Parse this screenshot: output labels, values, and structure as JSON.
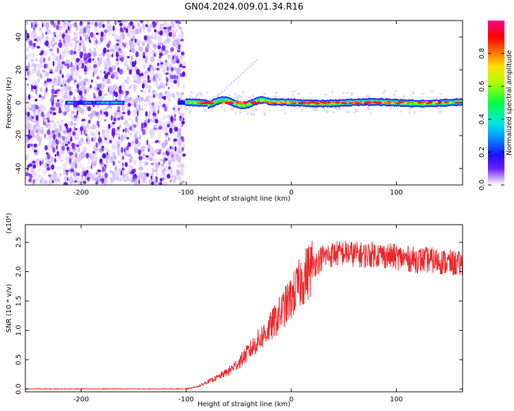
{
  "title": "GN04.2024.009.01.34.R16",
  "chart_data": [
    {
      "type": "heatmap",
      "title": "",
      "xlabel": "Height of straight line (km)",
      "ylabel": "Frequency (Hz)",
      "xlim": [
        -253,
        163
      ],
      "ylim": [
        -50,
        50
      ],
      "xticks": [
        -200,
        -100,
        0,
        100
      ],
      "yticks": [
        -40,
        -20,
        0,
        20,
        40
      ],
      "grid": false,
      "colorbar": {
        "label": "Normalized spectral amplitude",
        "range": [
          0,
          1
        ],
        "ticks": [
          "0.0",
          "0.2",
          "0.4",
          "0.6",
          "0.8"
        ],
        "colormap": "rainbow (purple-blue-cyan-green-yellow-red-magenta)"
      },
      "regions": [
        {
          "x_from": -253,
          "x_to": -102,
          "description": "broadband noise speckle",
          "amplitude": 0.1
        },
        {
          "x_from": -102,
          "x_to": 163,
          "description": "narrow signal band near 0 Hz",
          "center_hz": 0,
          "amplitude_range": [
            0.2,
            0.9
          ]
        }
      ]
    },
    {
      "type": "line",
      "title": "",
      "xlabel": "Height of straight line (km)",
      "ylabel": "SNR (10 * v/v)",
      "multiplier_label": "(x10⁴)",
      "xlim": [
        -253,
        163
      ],
      "ylim": [
        0,
        2.8
      ],
      "xticks": [
        -200,
        -100,
        0,
        100
      ],
      "yticks": [
        "0.0",
        "0.5",
        "1.0",
        "1.5",
        "2.0",
        "2.5"
      ],
      "grid": false,
      "series": [
        {
          "color": "#e8282b",
          "x": [
            -253,
            -200,
            -150,
            -100,
            -88,
            -80,
            -70,
            -60,
            -50,
            -40,
            -30,
            -20,
            -10,
            0,
            10,
            20,
            30,
            40,
            50,
            60,
            70,
            80,
            90,
            100,
            110,
            120,
            130,
            140,
            150,
            163
          ],
          "y": [
            0.0,
            0.0,
            0.0,
            0.0,
            0.05,
            0.12,
            0.2,
            0.3,
            0.45,
            0.65,
            0.85,
            1.05,
            1.3,
            1.55,
            1.85,
            2.1,
            2.25,
            2.3,
            2.32,
            2.3,
            2.28,
            2.3,
            2.27,
            2.25,
            2.22,
            2.2,
            2.2,
            2.18,
            2.15,
            2.12
          ]
        }
      ]
    }
  ]
}
